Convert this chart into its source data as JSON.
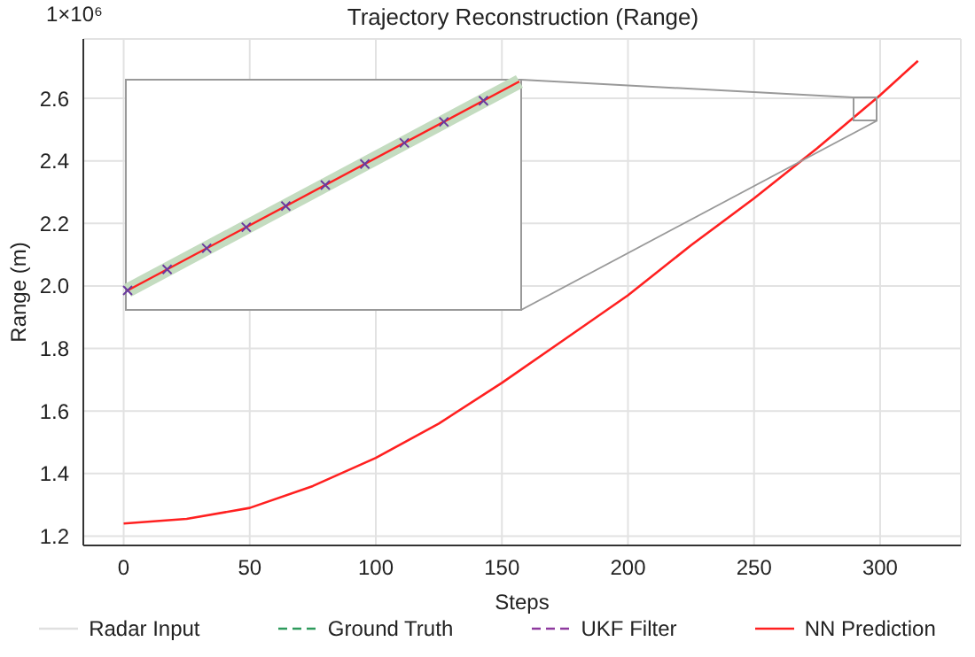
{
  "chart_data": {
    "type": "line",
    "title": "Trajectory Reconstruction (Range)",
    "xlabel": "Steps",
    "ylabel": "Range (m)",
    "annotations": [
      "1×10⁶"
    ],
    "x": [
      0,
      25,
      50,
      75,
      100,
      125,
      150,
      175,
      200,
      225,
      250,
      275,
      300,
      315
    ],
    "series": [
      {
        "name": "Radar Input",
        "color": "#e0e0e0",
        "line_style": "solid",
        "values": [
          null,
          null,
          null,
          null,
          null,
          null,
          null,
          null,
          null,
          null,
          null,
          null,
          null,
          null
        ]
      },
      {
        "name": "Ground Truth",
        "color": "#2e9a5c",
        "line_style": "dashed",
        "values": [
          null,
          null,
          null,
          null,
          null,
          null,
          null,
          null,
          null,
          null,
          null,
          null,
          null,
          null
        ]
      },
      {
        "name": "UKF Filter",
        "color": "#8e3a9e",
        "line_style": "dashed",
        "values": [
          null,
          null,
          null,
          null,
          null,
          null,
          null,
          null,
          null,
          null,
          null,
          null,
          null,
          null
        ]
      },
      {
        "name": "NN Prediction",
        "color": "#ff2020",
        "line_style": "solid",
        "values": [
          1.24,
          1.255,
          1.29,
          1.36,
          1.45,
          1.56,
          1.69,
          1.83,
          1.97,
          2.13,
          2.28,
          2.44,
          2.61,
          2.72
        ]
      }
    ],
    "xlim": [
      -16,
      332
    ],
    "xticks": [
      0,
      50,
      100,
      150,
      200,
      250,
      300
    ],
    "ylim": [
      1.17,
      2.79
    ],
    "yticks": [
      1.2,
      1.4,
      1.6,
      1.8,
      {
        "value": 2,
        "label": "2.0"
      },
      2.2,
      2.4,
      2.6
    ],
    "grid": true,
    "legend": "bottom",
    "marker": "none"
  }
}
